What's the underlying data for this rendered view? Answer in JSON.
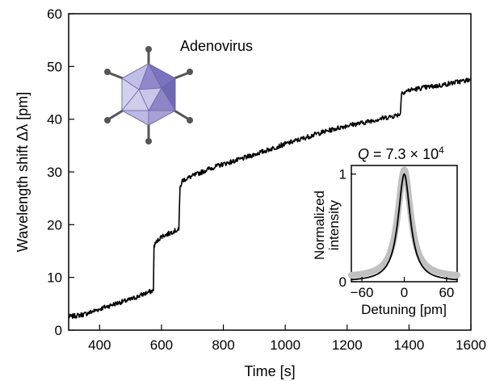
{
  "chart_data": [
    {
      "type": "line",
      "xlabel": "Time [s]",
      "ylabel": "Wavelength shift Δλ [pm]",
      "xlim": [
        300,
        1600
      ],
      "ylim": [
        0,
        60
      ],
      "xticks": [
        400,
        600,
        800,
        1000,
        1200,
        1400,
        1600
      ],
      "yticks": [
        0,
        10,
        20,
        30,
        40,
        50,
        60
      ],
      "grid": false,
      "annotation": "Adenovirus",
      "series": [
        {
          "color": "#000000",
          "points": [
            [
              300,
              2.5
            ],
            [
              350,
              3.0
            ],
            [
              400,
              4.0
            ],
            [
              450,
              5.0
            ],
            [
              500,
              5.8
            ],
            [
              540,
              6.8
            ],
            [
              574,
              7.5
            ],
            [
              576,
              16.0
            ],
            [
              585,
              16.8
            ],
            [
              600,
              17.8
            ],
            [
              620,
              18.2
            ],
            [
              640,
              18.8
            ],
            [
              656,
              19.0
            ],
            [
              660,
              27.0
            ],
            [
              668,
              28.4
            ],
            [
              700,
              29.2
            ],
            [
              750,
              30.5
            ],
            [
              800,
              31.5
            ],
            [
              850,
              32.3
            ],
            [
              900,
              33.3
            ],
            [
              950,
              34.3
            ],
            [
              1000,
              35.3
            ],
            [
              1050,
              36.2
            ],
            [
              1100,
              37.2
            ],
            [
              1150,
              38.0
            ],
            [
              1200,
              38.8
            ],
            [
              1250,
              39.3
            ],
            [
              1300,
              40.0
            ],
            [
              1350,
              40.6
            ],
            [
              1372,
              41.0
            ],
            [
              1376,
              45.0
            ],
            [
              1400,
              45.5
            ],
            [
              1450,
              46.0
            ],
            [
              1500,
              46.4
            ],
            [
              1550,
              47.0
            ],
            [
              1600,
              47.5
            ]
          ]
        }
      ]
    },
    {
      "type": "line",
      "title": "Q = 7.3 × 10⁴",
      "xlabel": "Detuning [pm]",
      "ylabel": "Normalized intensity",
      "xlim": [
        -75,
        75
      ],
      "ylim": [
        0,
        1.08
      ],
      "xticks": [
        -60,
        0,
        60
      ],
      "yticks": [
        0,
        1
      ],
      "series": [
        {
          "kind": "measured",
          "color": "#c0c0c0",
          "center": 0,
          "fwhm": 22
        },
        {
          "kind": "lorentzian-fit",
          "color": "#000000",
          "center": 0,
          "fwhm": 21
        }
      ]
    }
  ],
  "texts": {
    "xlabel": "Time [s]",
    "ylabel": "Wavelength shift Δλ [pm]",
    "annotation": "Adenovirus",
    "inset_title_q": "Q",
    "inset_title_eq": " = 7.3 × 10",
    "inset_title_exp": "4",
    "inset_ylabel_1": "Normalized",
    "inset_ylabel_2": "intensity",
    "inset_xlabel": "Detuning [pm]"
  },
  "icons": {
    "virus": "icosahedral-virus-icon"
  }
}
